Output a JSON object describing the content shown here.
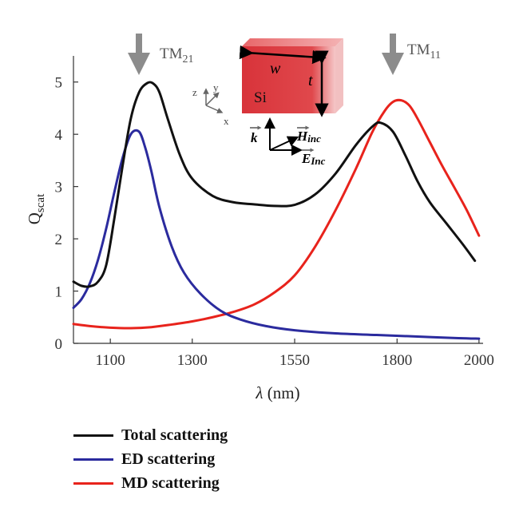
{
  "chart_data": {
    "type": "line",
    "xlabel_symbol": "λ",
    "xlabel_unit": "(nm)",
    "ylabel_main": "Q",
    "ylabel_sub": "scat",
    "xlim": [
      1010,
      2010
    ],
    "ylim": [
      0,
      5.5
    ],
    "xticks": [
      1100,
      1300,
      1550,
      1800,
      2000
    ],
    "yticks": [
      0,
      1,
      2,
      3,
      4,
      5
    ],
    "grid": false,
    "legend_position": "bottom-left",
    "series": [
      {
        "name": "Total scattering",
        "color": "#111111",
        "x": [
          1010,
          1030,
          1050,
          1070,
          1090,
          1110,
          1130,
          1150,
          1170,
          1190,
          1205,
          1220,
          1240,
          1270,
          1300,
          1350,
          1400,
          1450,
          1500,
          1550,
          1600,
          1650,
          1700,
          1740,
          1760,
          1790,
          1820,
          1850,
          1880,
          1920,
          1960,
          1990
        ],
        "values": [
          1.18,
          1.1,
          1.09,
          1.18,
          1.5,
          2.4,
          3.4,
          4.3,
          4.8,
          4.98,
          4.97,
          4.8,
          4.3,
          3.6,
          3.15,
          2.82,
          2.7,
          2.66,
          2.63,
          2.65,
          2.85,
          3.25,
          3.8,
          4.15,
          4.22,
          4.05,
          3.6,
          3.1,
          2.7,
          2.3,
          1.9,
          1.58
        ]
      },
      {
        "name": "ED scattering",
        "color": "#2b2b9e",
        "x": [
          1010,
          1030,
          1050,
          1070,
          1090,
          1110,
          1130,
          1150,
          1170,
          1185,
          1200,
          1220,
          1250,
          1280,
          1320,
          1370,
          1420,
          1480,
          1550,
          1650,
          1750,
          1850,
          1950,
          2000
        ],
        "values": [
          0.68,
          0.85,
          1.15,
          1.6,
          2.2,
          2.9,
          3.55,
          4.0,
          4.05,
          3.75,
          3.3,
          2.6,
          1.85,
          1.35,
          0.95,
          0.62,
          0.45,
          0.33,
          0.25,
          0.19,
          0.16,
          0.13,
          0.1,
          0.09
        ]
      },
      {
        "name": "MD scattering",
        "color": "#e8231c",
        "x": [
          1010,
          1050,
          1100,
          1150,
          1200,
          1250,
          1300,
          1350,
          1400,
          1450,
          1500,
          1550,
          1600,
          1650,
          1700,
          1740,
          1770,
          1790,
          1810,
          1830,
          1850,
          1880,
          1910,
          1940,
          1970,
          2000
        ],
        "values": [
          0.37,
          0.33,
          0.3,
          0.29,
          0.31,
          0.36,
          0.42,
          0.5,
          0.6,
          0.74,
          0.97,
          1.3,
          1.85,
          2.55,
          3.35,
          4.05,
          4.45,
          4.62,
          4.65,
          4.55,
          4.3,
          3.85,
          3.4,
          2.98,
          2.55,
          2.06
        ]
      }
    ],
    "annotations": {
      "tm21_base": "TM",
      "tm21_sub": "21",
      "tm11_base": "TM",
      "tm11_sub": "11",
      "tm21_x": 1200,
      "tm11_x": 1800
    }
  },
  "inset": {
    "material": "Si",
    "width_label": "w",
    "thickness_label": "t",
    "axes": {
      "z": "z",
      "y": "y",
      "x": "x"
    },
    "k_label": "k",
    "h_label": "H",
    "h_sub": "inc",
    "e_label": "E",
    "e_sub": "Inc",
    "block_color": "#e0484c"
  }
}
